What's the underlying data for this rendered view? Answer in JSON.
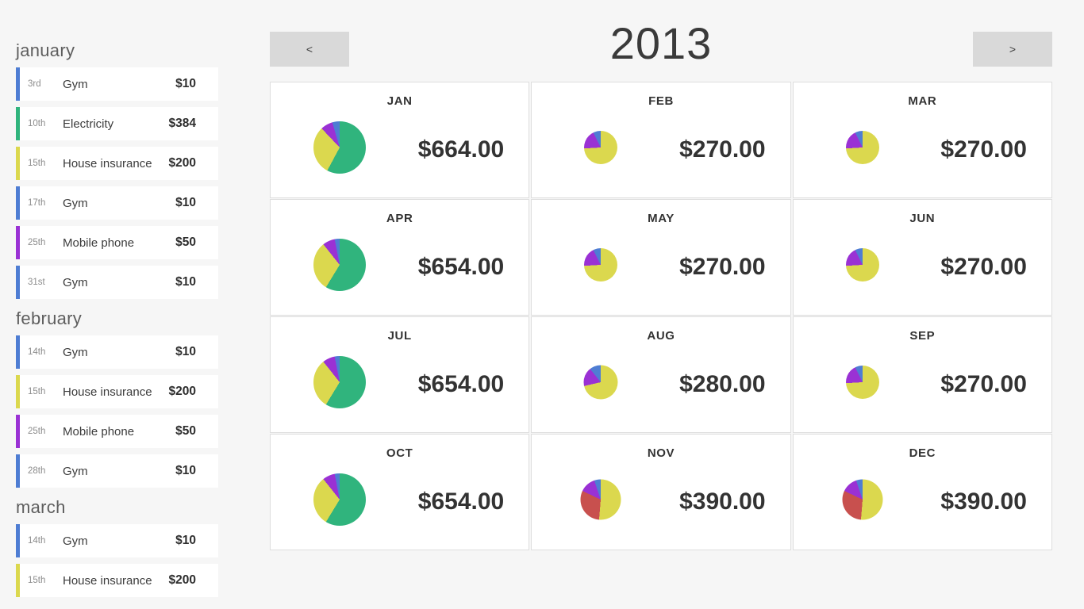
{
  "header": {
    "prev_label": "<",
    "year": "2013",
    "next_label": ">"
  },
  "colors": {
    "gym": "#4e7dd3",
    "electricity": "#30b47d",
    "house_insurance": "#dbd84e",
    "mobile_phone": "#9a31d4",
    "red": "#c8504e"
  },
  "sidebar": {
    "months": [
      {
        "name": "january",
        "items": [
          {
            "date": "3rd",
            "label": "Gym",
            "amount": "$10",
            "category": "gym"
          },
          {
            "date": "10th",
            "label": "Electricity",
            "amount": "$384",
            "category": "electricity"
          },
          {
            "date": "15th",
            "label": "House insurance",
            "amount": "$200",
            "category": "house_insurance"
          },
          {
            "date": "17th",
            "label": "Gym",
            "amount": "$10",
            "category": "gym"
          },
          {
            "date": "25th",
            "label": "Mobile phone",
            "amount": "$50",
            "category": "mobile_phone"
          },
          {
            "date": "31st",
            "label": "Gym",
            "amount": "$10",
            "category": "gym"
          }
        ]
      },
      {
        "name": "february",
        "items": [
          {
            "date": "14th",
            "label": "Gym",
            "amount": "$10",
            "category": "gym"
          },
          {
            "date": "15th",
            "label": "House insurance",
            "amount": "$200",
            "category": "house_insurance"
          },
          {
            "date": "25th",
            "label": "Mobile phone",
            "amount": "$50",
            "category": "mobile_phone"
          },
          {
            "date": "28th",
            "label": "Gym",
            "amount": "$10",
            "category": "gym"
          }
        ]
      },
      {
        "name": "march",
        "items": [
          {
            "date": "14th",
            "label": "Gym",
            "amount": "$10",
            "category": "gym"
          },
          {
            "date": "15th",
            "label": "House insurance",
            "amount": "$200",
            "category": "house_insurance"
          }
        ]
      }
    ]
  },
  "chart_data": {
    "type": "pie",
    "title": "2013",
    "layout": "3x4-month-grid",
    "max_total": 664,
    "months": [
      {
        "label": "JAN",
        "total": 664,
        "total_display": "$664.00",
        "slices": [
          {
            "category": "electricity",
            "value": 384
          },
          {
            "category": "house_insurance",
            "value": 200
          },
          {
            "category": "mobile_phone",
            "value": 50
          },
          {
            "category": "gym",
            "value": 30
          }
        ]
      },
      {
        "label": "FEB",
        "total": 270,
        "total_display": "$270.00",
        "slices": [
          {
            "category": "house_insurance",
            "value": 200
          },
          {
            "category": "mobile_phone",
            "value": 50
          },
          {
            "category": "gym",
            "value": 20
          }
        ]
      },
      {
        "label": "MAR",
        "total": 270,
        "total_display": "$270.00",
        "slices": [
          {
            "category": "house_insurance",
            "value": 200
          },
          {
            "category": "mobile_phone",
            "value": 50
          },
          {
            "category": "gym",
            "value": 20
          }
        ]
      },
      {
        "label": "APR",
        "total": 654,
        "total_display": "$654.00",
        "slices": [
          {
            "category": "electricity",
            "value": 384
          },
          {
            "category": "house_insurance",
            "value": 200
          },
          {
            "category": "mobile_phone",
            "value": 50
          },
          {
            "category": "gym",
            "value": 20
          }
        ]
      },
      {
        "label": "MAY",
        "total": 270,
        "total_display": "$270.00",
        "slices": [
          {
            "category": "house_insurance",
            "value": 200
          },
          {
            "category": "mobile_phone",
            "value": 50
          },
          {
            "category": "gym",
            "value": 20
          }
        ]
      },
      {
        "label": "JUN",
        "total": 270,
        "total_display": "$270.00",
        "slices": [
          {
            "category": "house_insurance",
            "value": 200
          },
          {
            "category": "mobile_phone",
            "value": 50
          },
          {
            "category": "gym",
            "value": 20
          }
        ]
      },
      {
        "label": "JUL",
        "total": 654,
        "total_display": "$654.00",
        "slices": [
          {
            "category": "electricity",
            "value": 384
          },
          {
            "category": "house_insurance",
            "value": 200
          },
          {
            "category": "mobile_phone",
            "value": 50
          },
          {
            "category": "gym",
            "value": 20
          }
        ]
      },
      {
        "label": "AUG",
        "total": 280,
        "total_display": "$280.00",
        "slices": [
          {
            "category": "house_insurance",
            "value": 200
          },
          {
            "category": "mobile_phone",
            "value": 50
          },
          {
            "category": "gym",
            "value": 30
          }
        ]
      },
      {
        "label": "SEP",
        "total": 270,
        "total_display": "$270.00",
        "slices": [
          {
            "category": "house_insurance",
            "value": 200
          },
          {
            "category": "mobile_phone",
            "value": 50
          },
          {
            "category": "gym",
            "value": 20
          }
        ]
      },
      {
        "label": "OCT",
        "total": 654,
        "total_display": "$654.00",
        "slices": [
          {
            "category": "electricity",
            "value": 384
          },
          {
            "category": "house_insurance",
            "value": 200
          },
          {
            "category": "mobile_phone",
            "value": 50
          },
          {
            "category": "gym",
            "value": 20
          }
        ]
      },
      {
        "label": "NOV",
        "total": 390,
        "total_display": "$390.00",
        "slices": [
          {
            "category": "house_insurance",
            "value": 200
          },
          {
            "category": "red",
            "value": 120
          },
          {
            "category": "mobile_phone",
            "value": 50
          },
          {
            "category": "gym",
            "value": 20
          }
        ]
      },
      {
        "label": "DEC",
        "total": 390,
        "total_display": "$390.00",
        "slices": [
          {
            "category": "house_insurance",
            "value": 200
          },
          {
            "category": "red",
            "value": 120
          },
          {
            "category": "mobile_phone",
            "value": 50
          },
          {
            "category": "gym",
            "value": 20
          }
        ]
      }
    ]
  }
}
